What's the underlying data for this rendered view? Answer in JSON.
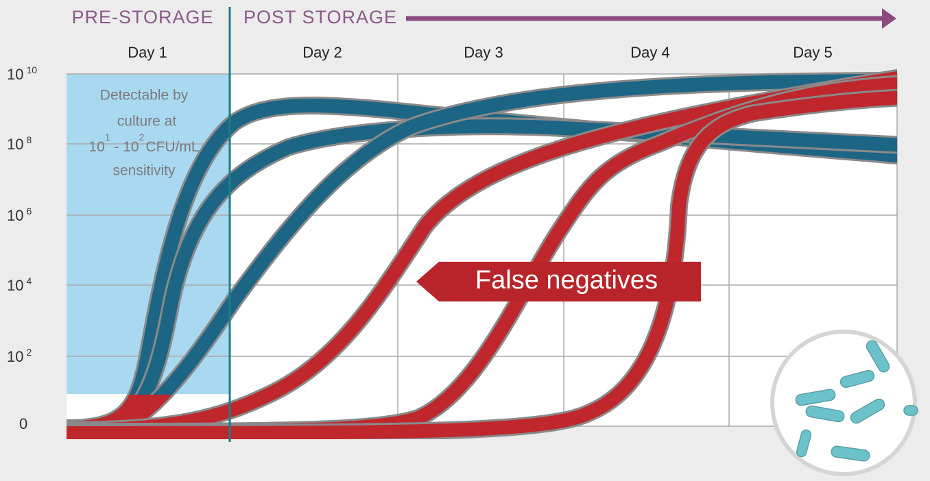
{
  "header": {
    "pre": "PRE-STORAGE",
    "post": "POST STORAGE"
  },
  "days": [
    "Day 1",
    "Day 2",
    "Day 3",
    "Day 4",
    "Day 5"
  ],
  "y_axis": [
    {
      "base": "10",
      "exp": "10"
    },
    {
      "base": "10",
      "exp": "8"
    },
    {
      "base": "10",
      "exp": "6"
    },
    {
      "base": "10",
      "exp": "4"
    },
    {
      "base": "10",
      "exp": "2"
    },
    {
      "base": "0"
    }
  ],
  "annotation": {
    "line1": "Detectable by",
    "line2": "culture at",
    "line3": {
      "low": "10",
      "low_exp": "1",
      "mid": " - 10",
      "high_exp": "2",
      "unit": "CFU/mL"
    },
    "line4": "sensitivity"
  },
  "callout": "False negatives"
}
